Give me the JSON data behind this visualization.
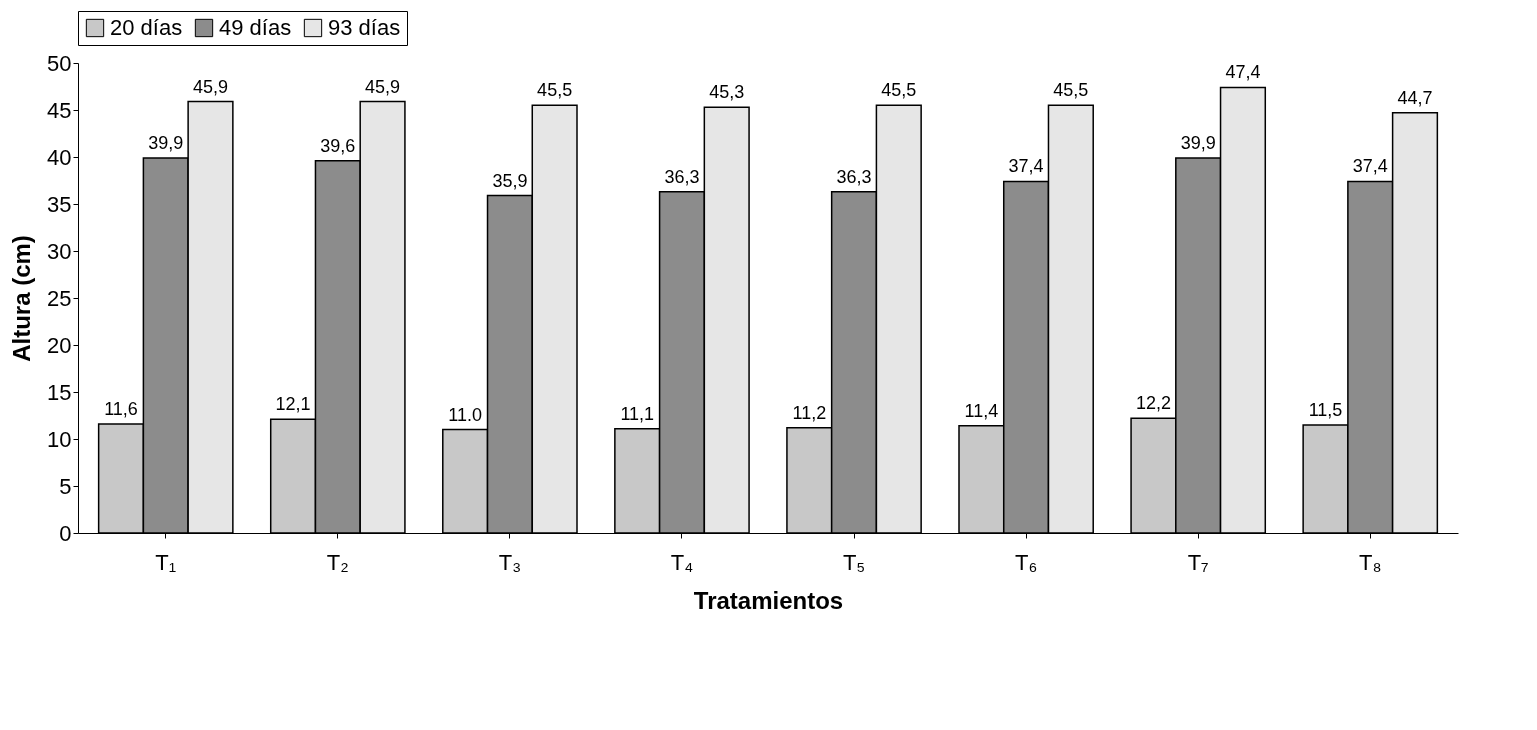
{
  "chart_data": {
    "type": "bar",
    "xlabel": "Tratamientos",
    "ylabel": "Altura (cm)",
    "categories": [
      "T₁",
      "T₂",
      "T₃",
      "T₄",
      "T₅",
      "T₆",
      "T₇",
      "T₈"
    ],
    "series": [
      {
        "name": "20 días",
        "color": "#c8c8c8",
        "values": [
          11.6,
          12.1,
          11.0,
          11.1,
          11.2,
          11.4,
          12.2,
          11.5
        ],
        "value_labels": [
          "11,6",
          "12,1",
          "11.0",
          "11,1",
          "11,2",
          "11,4",
          "12,2",
          "11,5"
        ]
      },
      {
        "name": "49 días",
        "color": "#8c8c8c",
        "values": [
          39.9,
          39.6,
          35.9,
          36.3,
          36.3,
          37.4,
          39.9,
          37.4
        ],
        "value_labels": [
          "39,9",
          "39,6",
          "35,9",
          "36,3",
          "36,3",
          "37,4",
          "39,9",
          "37,4"
        ]
      },
      {
        "name": "93 días",
        "color": "#e6e6e6",
        "values": [
          45.9,
          45.9,
          45.5,
          45.3,
          45.5,
          45.5,
          47.4,
          44.7
        ],
        "value_labels": [
          "45,9",
          "45,9",
          "45,5",
          "45,3",
          "45,5",
          "45,5",
          "47,4",
          "44,7"
        ]
      }
    ],
    "ylim": [
      0,
      50
    ],
    "yticks": [
      0,
      5,
      10,
      15,
      20,
      25,
      30,
      35,
      40,
      45,
      50
    ],
    "legend": "top"
  }
}
